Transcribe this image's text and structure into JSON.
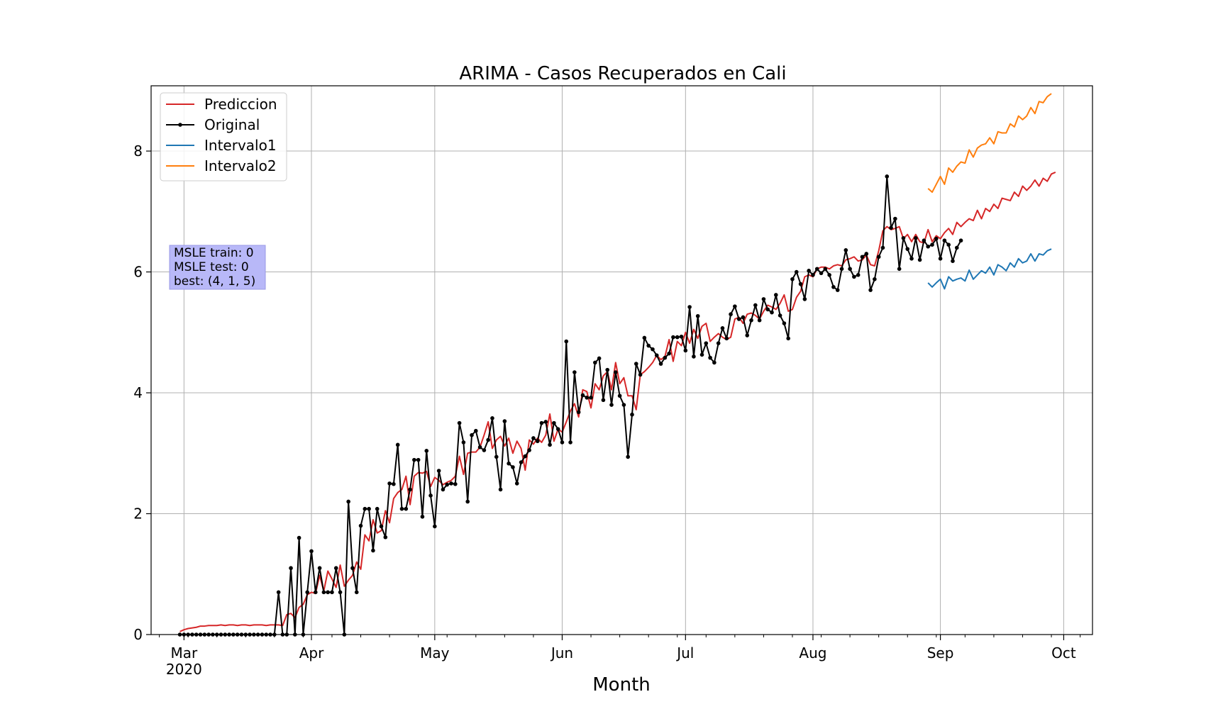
{
  "chart_data": {
    "type": "line",
    "title": "ARIMA - Casos Recuperados en Cali",
    "xlabel": "Month",
    "ylabel": "",
    "x_type": "date",
    "xlim": [
      "2020-02-22",
      "2020-10-08"
    ],
    "ylim": [
      0,
      9.08
    ],
    "y_ticks": [
      0,
      2,
      4,
      6,
      8
    ],
    "x_ticks": [
      {
        "date": "2020-03-01",
        "label": "Mar",
        "sublabel": "2020"
      },
      {
        "date": "2020-04-01",
        "label": "Apr",
        "sublabel": ""
      },
      {
        "date": "2020-05-01",
        "label": "May",
        "sublabel": ""
      },
      {
        "date": "2020-06-01",
        "label": "Jun",
        "sublabel": ""
      },
      {
        "date": "2020-07-01",
        "label": "Jul",
        "sublabel": ""
      },
      {
        "date": "2020-08-01",
        "label": "Aug",
        "sublabel": ""
      },
      {
        "date": "2020-09-01",
        "label": "Sep",
        "sublabel": ""
      },
      {
        "date": "2020-10-01",
        "label": "Oct",
        "sublabel": ""
      }
    ],
    "grid": true,
    "legend": {
      "placement": "top-left",
      "entries": [
        "Prediccion",
        "Original",
        "Intervalo1",
        "Intervalo2"
      ]
    },
    "annotation": {
      "lines": [
        "MSLE train: 0",
        "MSLE test: 0",
        "best: (4, 1, 5)"
      ],
      "placement": "left-middle",
      "color": "#b8b8f8"
    },
    "series": [
      {
        "name": "Prediccion",
        "color": "#d62728",
        "marker": false,
        "start": "2020-02-29",
        "values": [
          0.05,
          0.08,
          0.1,
          0.11,
          0.12,
          0.14,
          0.14,
          0.15,
          0.15,
          0.15,
          0.16,
          0.15,
          0.16,
          0.16,
          0.15,
          0.16,
          0.16,
          0.15,
          0.16,
          0.16,
          0.16,
          0.15,
          0.16,
          0.16,
          0.16,
          0.15,
          0.33,
          0.35,
          0.28,
          0.45,
          0.5,
          0.66,
          0.7,
          0.68,
          0.98,
          0.72,
          1.05,
          0.92,
          0.78,
          1.15,
          0.8,
          0.9,
          0.98,
          1.2,
          1.08,
          1.65,
          1.55,
          1.9,
          1.68,
          1.72,
          2.05,
          1.85,
          2.25,
          2.35,
          2.4,
          2.62,
          2.15,
          2.62,
          2.68,
          2.67,
          2.7,
          2.45,
          2.6,
          2.55,
          2.48,
          2.52,
          2.55,
          2.62,
          2.95,
          2.65,
          3.0,
          3.02,
          3.02,
          3.1,
          3.3,
          3.52,
          3.08,
          3.22,
          3.28,
          3.12,
          3.25,
          3.0,
          3.2,
          3.08,
          2.72,
          3.22,
          3.15,
          3.25,
          3.18,
          3.3,
          3.65,
          3.2,
          3.4,
          3.35,
          3.52,
          3.7,
          3.82,
          3.6,
          4.05,
          4.02,
          3.75,
          4.15,
          4.05,
          4.28,
          4.35,
          4.05,
          4.5,
          4.15,
          4.25,
          3.95,
          3.95,
          3.72,
          4.3,
          4.35,
          4.42,
          4.5,
          4.62,
          4.55,
          4.6,
          4.88,
          4.52,
          4.85,
          4.78,
          5.0,
          4.82,
          5.05,
          4.9,
          5.1,
          5.15,
          4.85,
          4.92,
          4.98,
          4.92,
          4.88,
          4.92,
          5.22,
          5.25,
          5.15,
          5.3,
          5.32,
          5.28,
          5.22,
          5.35,
          5.45,
          5.42,
          5.38,
          5.48,
          5.62,
          5.35,
          5.38,
          5.58,
          5.68,
          5.92,
          5.95,
          5.92,
          6.05,
          6.08,
          6.08,
          6.05,
          6.1,
          6.12,
          6.1,
          6.2,
          6.22,
          6.25,
          6.18,
          6.2,
          6.28,
          6.12,
          6.1,
          6.35,
          6.68,
          6.75,
          6.7,
          6.72,
          6.75,
          6.55,
          6.62,
          6.5,
          6.62,
          6.5,
          6.48,
          6.7,
          6.5,
          6.6,
          6.55,
          6.65,
          6.72,
          6.62,
          6.82,
          6.75,
          6.82,
          6.88,
          6.85,
          7.02,
          6.88,
          7.05,
          7.0,
          7.12,
          7.05,
          7.22,
          7.2,
          7.18,
          7.32,
          7.25,
          7.42,
          7.35,
          7.42,
          7.52,
          7.42,
          7.55,
          7.5,
          7.62,
          7.65
        ]
      },
      {
        "name": "Original",
        "color": "#000000",
        "marker": true,
        "start": "2020-02-29",
        "values": [
          0,
          0,
          0,
          0,
          0,
          0,
          0,
          0,
          0,
          0,
          0,
          0,
          0,
          0,
          0,
          0,
          0,
          0,
          0,
          0,
          0,
          0,
          0,
          0,
          0.7,
          0,
          0,
          1.1,
          0,
          1.6,
          0,
          0.7,
          1.38,
          0.7,
          1.1,
          0.7,
          0.7,
          0.7,
          1.1,
          0.7,
          0,
          2.2,
          1.1,
          0.7,
          1.8,
          2.08,
          2.08,
          1.39,
          2.08,
          1.79,
          1.61,
          2.5,
          2.49,
          3.14,
          2.08,
          2.08,
          2.4,
          2.89,
          2.89,
          1.95,
          3.04,
          2.3,
          1.79,
          2.71,
          2.4,
          2.48,
          2.5,
          2.49,
          3.5,
          3.18,
          2.2,
          3.3,
          3.37,
          3.1,
          3.05,
          3.22,
          3.58,
          2.94,
          2.4,
          3.53,
          2.83,
          2.77,
          2.5,
          2.85,
          2.95,
          3.05,
          3.25,
          3.2,
          3.5,
          3.52,
          3.14,
          3.5,
          3.4,
          3.18,
          4.85,
          3.18,
          4.34,
          3.68,
          3.96,
          3.92,
          3.92,
          4.5,
          4.57,
          3.88,
          4.38,
          3.8,
          4.34,
          3.95,
          3.8,
          2.94,
          3.64,
          4.48,
          4.3,
          4.91,
          4.78,
          4.72,
          4.62,
          4.48,
          4.58,
          4.65,
          4.92,
          4.92,
          4.93,
          4.7,
          5.42,
          4.6,
          5.27,
          4.63,
          4.82,
          4.58,
          4.5,
          4.82,
          5.07,
          4.9,
          5.3,
          5.43,
          5.22,
          5.25,
          4.95,
          5.2,
          5.45,
          5.2,
          5.55,
          5.38,
          5.33,
          5.62,
          5.28,
          5.15,
          4.9,
          5.88,
          6.0,
          5.8,
          5.55,
          6.02,
          5.95,
          6.05,
          5.98,
          6.05,
          5.95,
          5.75,
          5.7,
          6.05,
          6.36,
          6.05,
          5.92,
          5.95,
          6.25,
          6.3,
          5.7,
          5.88,
          6.25,
          6.4,
          7.58,
          6.73,
          6.88,
          6.05,
          6.56,
          6.38,
          6.22,
          6.56,
          6.2,
          6.52,
          6.42,
          6.45,
          6.55,
          6.22,
          6.52,
          6.45,
          6.18,
          6.4,
          6.52
        ]
      },
      {
        "name": "Intervalo1",
        "color": "#1f77b4",
        "marker": false,
        "start": "2020-08-29",
        "values": [
          5.82,
          5.75,
          5.82,
          5.88,
          5.72,
          5.92,
          5.85,
          5.88,
          5.9,
          5.85,
          6.03,
          5.88,
          5.95,
          6.02,
          5.98,
          6.08,
          5.95,
          6.12,
          6.08,
          6.02,
          6.15,
          6.08,
          6.22,
          6.15,
          6.18,
          6.3,
          6.18,
          6.3,
          6.28,
          6.35,
          6.38
        ]
      },
      {
        "name": "Intervalo2",
        "color": "#ff7f0e",
        "marker": false,
        "start": "2020-08-29",
        "values": [
          7.38,
          7.32,
          7.45,
          7.58,
          7.45,
          7.72,
          7.65,
          7.75,
          7.82,
          7.8,
          8.02,
          7.9,
          8.05,
          8.1,
          8.12,
          8.22,
          8.12,
          8.32,
          8.3,
          8.3,
          8.45,
          8.4,
          8.58,
          8.52,
          8.58,
          8.72,
          8.62,
          8.82,
          8.8,
          8.9,
          8.95
        ]
      }
    ]
  }
}
